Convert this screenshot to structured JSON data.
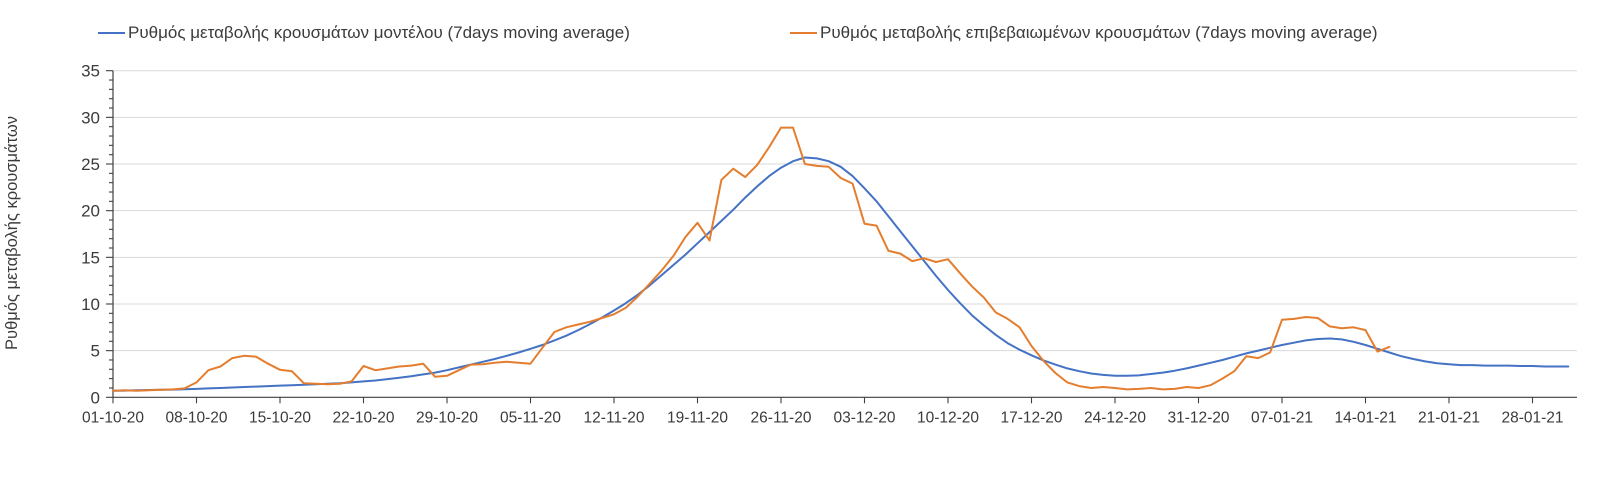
{
  "chart_data": {
    "type": "line",
    "title": "",
    "xlabel": "",
    "ylabel": "Ρυθμός μεταβολής κρουσμάτων",
    "ylim": [
      0,
      35
    ],
    "ytick_step": 5,
    "ytick_labels": [
      "0",
      "5",
      "10",
      "15",
      "20",
      "25",
      "30",
      "35"
    ],
    "y_minor_step": 1,
    "grid": "horizontal-major",
    "legend_position": "top",
    "x_start_date": "01-10-20",
    "x_tick_interval_days": 7,
    "x_tick_labels": [
      "01-10-20",
      "08-10-20",
      "15-10-20",
      "22-10-20",
      "29-10-20",
      "05-11-20",
      "12-11-20",
      "19-11-20",
      "26-11-20",
      "03-12-20",
      "10-12-20",
      "17-12-20",
      "24-12-20",
      "31-12-20",
      "07-01-21",
      "14-01-21",
      "21-01-21",
      "28-01-21"
    ],
    "colors": {
      "model_line": "#4472C4",
      "confirmed_line": "#E47E2E",
      "gridline": "#D9D9D9",
      "axis_line": "#404040",
      "tick_text": "#3b3b3b"
    },
    "series": [
      {
        "name": "Ρυθμός μεταβολής κρουσμάτων μοντέλου (7days moving average)",
        "color": "#4472C4",
        "daily_values_from_01-10-20": [
          0.7,
          0.72,
          0.75,
          0.78,
          0.8,
          0.83,
          0.87,
          0.9,
          0.95,
          1.0,
          1.05,
          1.1,
          1.15,
          1.2,
          1.25,
          1.3,
          1.35,
          1.4,
          1.45,
          1.5,
          1.6,
          1.7,
          1.8,
          1.95,
          2.1,
          2.25,
          2.45,
          2.65,
          2.9,
          3.2,
          3.5,
          3.8,
          4.1,
          4.45,
          4.8,
          5.2,
          5.6,
          6.1,
          6.6,
          7.2,
          7.85,
          8.55,
          9.3,
          10.1,
          11.0,
          12.0,
          13.1,
          14.2,
          15.3,
          16.5,
          17.7,
          18.9,
          20.1,
          21.4,
          22.6,
          23.7,
          24.6,
          25.3,
          25.7,
          25.6,
          25.3,
          24.7,
          23.7,
          22.4,
          21.0,
          19.4,
          17.8,
          16.2,
          14.6,
          13.0,
          11.5,
          10.1,
          8.8,
          7.7,
          6.7,
          5.8,
          5.1,
          4.5,
          3.95,
          3.5,
          3.1,
          2.8,
          2.55,
          2.4,
          2.3,
          2.3,
          2.35,
          2.5,
          2.65,
          2.85,
          3.1,
          3.4,
          3.7,
          4.0,
          4.35,
          4.7,
          5.0,
          5.3,
          5.6,
          5.85,
          6.1,
          6.25,
          6.3,
          6.2,
          5.95,
          5.6,
          5.2,
          4.8,
          4.4,
          4.1,
          3.85,
          3.65,
          3.55,
          3.45,
          3.45,
          3.4,
          3.4,
          3.4,
          3.35,
          3.35,
          3.3,
          3.3,
          3.3
        ]
      },
      {
        "name": "Ρυθμός μεταβολής επιβεβαιωμένων κρουσμάτων (7days moving average)",
        "color": "#E47E2E",
        "daily_values_from_01-10-20": [
          0.7,
          0.75,
          0.7,
          0.75,
          0.8,
          0.85,
          0.95,
          1.6,
          2.9,
          3.3,
          4.2,
          4.45,
          4.35,
          3.6,
          2.95,
          2.8,
          1.5,
          1.45,
          1.4,
          1.45,
          1.7,
          3.35,
          2.9,
          3.1,
          3.3,
          3.4,
          3.6,
          2.2,
          2.3,
          2.9,
          3.5,
          3.55,
          3.7,
          3.8,
          3.7,
          3.6,
          5.3,
          7.0,
          7.5,
          7.8,
          8.1,
          8.5,
          8.9,
          9.6,
          10.8,
          12.2,
          13.6,
          15.2,
          17.2,
          18.7,
          16.8,
          23.3,
          24.5,
          23.6,
          24.9,
          26.8,
          28.9,
          28.9,
          25.0,
          24.8,
          24.7,
          23.5,
          22.9,
          18.6,
          18.4,
          15.7,
          15.4,
          14.6,
          14.9,
          14.5,
          14.8,
          13.3,
          11.9,
          10.7,
          9.1,
          8.4,
          7.5,
          5.5,
          3.9,
          2.6,
          1.6,
          1.2,
          1.0,
          1.1,
          1.0,
          0.85,
          0.9,
          1.0,
          0.85,
          0.9,
          1.1,
          1.0,
          1.3,
          2.0,
          2.8,
          4.4,
          4.2,
          4.8,
          8.3,
          8.4,
          8.6,
          8.5,
          7.6,
          7.4,
          7.5,
          7.2,
          4.9,
          5.4
        ]
      }
    ]
  },
  "legend": {
    "model_label": "Ρυθμός μεταβολής κρουσμάτων μοντέλου (7days moving average)",
    "confirmed_label": "Ρυθμός μεταβολής επιβεβαιωμένων κρουσμάτων (7days moving average)"
  }
}
